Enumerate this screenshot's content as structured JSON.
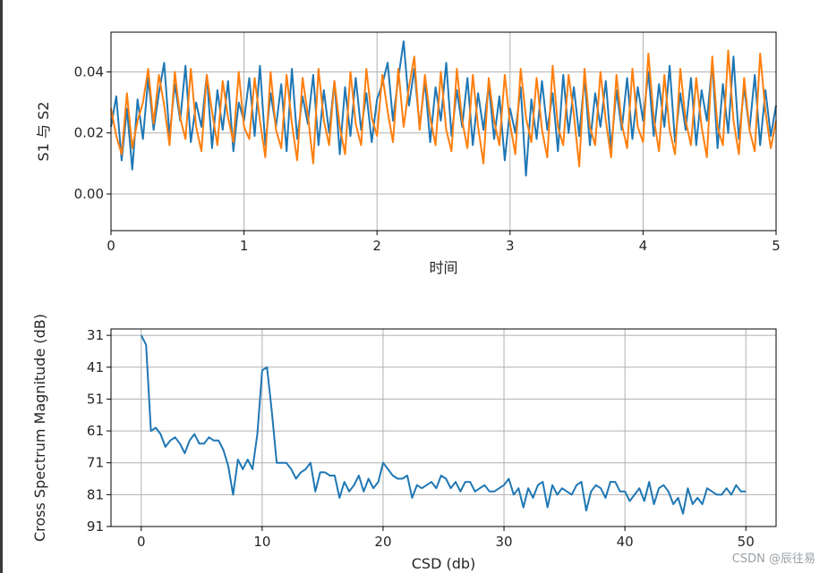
{
  "watermark": "CSDN @辰往易",
  "colors": {
    "series1": "#1f77b4",
    "series2": "#ff7f0e",
    "grid": "#b0b0b0",
    "axes": "#000000"
  },
  "chart_data": [
    {
      "type": "line",
      "title": "",
      "xlabel": "时间",
      "ylabel": "S1 与 S2",
      "xlim": [
        0,
        5
      ],
      "ylim": [
        -0.012,
        0.053
      ],
      "xticks": [
        0,
        1,
        2,
        3,
        4,
        5
      ],
      "xtick_labels": [
        "0",
        "1",
        "2",
        "3",
        "4",
        "5"
      ],
      "yticks": [
        0.0,
        0.02,
        0.04
      ],
      "ytick_labels": [
        "0.00",
        "0.02",
        "0.04"
      ],
      "grid": true,
      "legend": "none",
      "series": [
        {
          "color": "#1f77b4",
          "x": [
            0.0,
            0.04,
            0.08,
            0.12,
            0.16,
            0.2,
            0.24,
            0.28,
            0.32,
            0.36,
            0.4,
            0.44,
            0.48,
            0.52,
            0.56,
            0.6,
            0.64,
            0.68,
            0.72,
            0.76,
            0.8,
            0.84,
            0.88,
            0.92,
            0.96,
            1.0,
            1.04,
            1.08,
            1.12,
            1.16,
            1.2,
            1.24,
            1.28,
            1.32,
            1.36,
            1.4,
            1.44,
            1.48,
            1.52,
            1.56,
            1.6,
            1.64,
            1.68,
            1.72,
            1.76,
            1.8,
            1.84,
            1.88,
            1.92,
            1.96,
            2.0,
            2.04,
            2.08,
            2.12,
            2.16,
            2.2,
            2.24,
            2.28,
            2.32,
            2.36,
            2.4,
            2.44,
            2.48,
            2.52,
            2.56,
            2.6,
            2.64,
            2.68,
            2.72,
            2.76,
            2.8,
            2.84,
            2.88,
            2.92,
            2.96,
            3.0,
            3.04,
            3.08,
            3.12,
            3.16,
            3.2,
            3.24,
            3.28,
            3.32,
            3.36,
            3.4,
            3.44,
            3.48,
            3.52,
            3.56,
            3.6,
            3.64,
            3.68,
            3.72,
            3.76,
            3.8,
            3.84,
            3.88,
            3.92,
            3.96,
            4.0,
            4.04,
            4.08,
            4.12,
            4.16,
            4.2,
            4.24,
            4.28,
            4.32,
            4.36,
            4.4,
            4.44,
            4.48,
            4.52,
            4.56,
            4.6,
            4.64,
            4.68,
            4.72,
            4.76,
            4.8,
            4.84,
            4.88,
            4.92,
            4.96,
            5.0
          ],
          "y": [
            0.022,
            0.032,
            0.011,
            0.028,
            0.008,
            0.031,
            0.018,
            0.038,
            0.021,
            0.033,
            0.043,
            0.019,
            0.036,
            0.024,
            0.042,
            0.017,
            0.03,
            0.022,
            0.039,
            0.015,
            0.034,
            0.021,
            0.037,
            0.014,
            0.03,
            0.024,
            0.038,
            0.019,
            0.042,
            0.016,
            0.033,
            0.022,
            0.036,
            0.014,
            0.041,
            0.018,
            0.032,
            0.023,
            0.039,
            0.016,
            0.034,
            0.02,
            0.037,
            0.013,
            0.035,
            0.019,
            0.038,
            0.021,
            0.033,
            0.017,
            0.031,
            0.036,
            0.043,
            0.024,
            0.038,
            0.05,
            0.029,
            0.041,
            0.022,
            0.037,
            0.017,
            0.035,
            0.024,
            0.043,
            0.019,
            0.034,
            0.022,
            0.038,
            0.016,
            0.033,
            0.021,
            0.036,
            0.018,
            0.032,
            0.011,
            0.028,
            0.02,
            0.035,
            0.006,
            0.031,
            0.018,
            0.037,
            0.021,
            0.033,
            0.014,
            0.039,
            0.02,
            0.035,
            0.019,
            0.038,
            0.016,
            0.033,
            0.022,
            0.037,
            0.015,
            0.034,
            0.021,
            0.038,
            0.018,
            0.035,
            0.024,
            0.04,
            0.019,
            0.036,
            0.022,
            0.042,
            0.017,
            0.033,
            0.021,
            0.038,
            0.016,
            0.034,
            0.024,
            0.043,
            0.015,
            0.036,
            0.02,
            0.045,
            0.018,
            0.035,
            0.021,
            0.039,
            0.016,
            0.034,
            0.019,
            0.029
          ]
        },
        {
          "color": "#ff7f0e",
          "x": [
            0.0,
            0.04,
            0.08,
            0.12,
            0.16,
            0.2,
            0.24,
            0.28,
            0.32,
            0.36,
            0.4,
            0.44,
            0.48,
            0.52,
            0.56,
            0.6,
            0.64,
            0.68,
            0.72,
            0.76,
            0.8,
            0.84,
            0.88,
            0.92,
            0.96,
            1.0,
            1.04,
            1.08,
            1.12,
            1.16,
            1.2,
            1.24,
            1.28,
            1.32,
            1.36,
            1.4,
            1.44,
            1.48,
            1.52,
            1.56,
            1.6,
            1.64,
            1.68,
            1.72,
            1.76,
            1.8,
            1.84,
            1.88,
            1.92,
            1.96,
            2.0,
            2.04,
            2.08,
            2.12,
            2.16,
            2.2,
            2.24,
            2.28,
            2.32,
            2.36,
            2.4,
            2.44,
            2.48,
            2.52,
            2.56,
            2.6,
            2.64,
            2.68,
            2.72,
            2.76,
            2.8,
            2.84,
            2.88,
            2.92,
            2.96,
            3.0,
            3.04,
            3.08,
            3.12,
            3.16,
            3.2,
            3.24,
            3.28,
            3.32,
            3.36,
            3.4,
            3.44,
            3.48,
            3.52,
            3.56,
            3.6,
            3.64,
            3.68,
            3.72,
            3.76,
            3.8,
            3.84,
            3.88,
            3.92,
            3.96,
            4.0,
            4.04,
            4.08,
            4.12,
            4.16,
            4.2,
            4.24,
            4.28,
            4.32,
            4.36,
            4.4,
            4.44,
            4.48,
            4.52,
            4.56,
            4.6,
            4.64,
            4.68,
            4.72,
            4.76,
            4.8,
            4.84,
            4.88,
            4.92,
            4.96,
            5.0
          ],
          "y": [
            0.028,
            0.019,
            0.013,
            0.033,
            0.015,
            0.024,
            0.03,
            0.041,
            0.023,
            0.039,
            0.029,
            0.016,
            0.04,
            0.025,
            0.018,
            0.041,
            0.022,
            0.014,
            0.039,
            0.027,
            0.016,
            0.037,
            0.025,
            0.017,
            0.04,
            0.022,
            0.018,
            0.038,
            0.024,
            0.012,
            0.04,
            0.021,
            0.015,
            0.039,
            0.023,
            0.011,
            0.038,
            0.026,
            0.01,
            0.041,
            0.024,
            0.016,
            0.037,
            0.022,
            0.013,
            0.04,
            0.023,
            0.016,
            0.041,
            0.025,
            0.019,
            0.039,
            0.027,
            0.017,
            0.041,
            0.022,
            0.035,
            0.045,
            0.021,
            0.039,
            0.025,
            0.016,
            0.04,
            0.021,
            0.014,
            0.041,
            0.024,
            0.015,
            0.039,
            0.022,
            0.01,
            0.038,
            0.024,
            0.016,
            0.039,
            0.023,
            0.013,
            0.041,
            0.025,
            0.017,
            0.038,
            0.021,
            0.012,
            0.042,
            0.022,
            0.016,
            0.039,
            0.026,
            0.009,
            0.041,
            0.022,
            0.016,
            0.04,
            0.024,
            0.012,
            0.039,
            0.023,
            0.015,
            0.041,
            0.022,
            0.017,
            0.046,
            0.025,
            0.014,
            0.039,
            0.021,
            0.013,
            0.041,
            0.024,
            0.016,
            0.038,
            0.022,
            0.012,
            0.045,
            0.022,
            0.016,
            0.047,
            0.024,
            0.013,
            0.038,
            0.021,
            0.014,
            0.046,
            0.027,
            0.015,
            0.024
          ]
        }
      ]
    },
    {
      "type": "line",
      "title": "",
      "xlabel": "CSD (db)",
      "ylabel": "Cross Spectrum Magnitude (dB)",
      "xlim": [
        -2.5,
        52.5
      ],
      "ylim": [
        91,
        29
      ],
      "y_inverted": true,
      "xticks": [
        0,
        10,
        20,
        30,
        40,
        50
      ],
      "xtick_labels": [
        "0",
        "10",
        "20",
        "30",
        "40",
        "50"
      ],
      "yticks": [
        31,
        41,
        51,
        61,
        71,
        81,
        91
      ],
      "ytick_labels": [
        "31",
        "41",
        "51",
        "61",
        "71",
        "81",
        "91"
      ],
      "grid": true,
      "legend": "none",
      "series": [
        {
          "color": "#1f77b4",
          "x": [
            0.0,
            0.4,
            0.8,
            1.2,
            1.6,
            2.0,
            2.4,
            2.8,
            3.2,
            3.6,
            4.0,
            4.4,
            4.8,
            5.2,
            5.6,
            6.0,
            6.4,
            6.8,
            7.2,
            7.6,
            8.0,
            8.4,
            8.8,
            9.2,
            9.6,
            10.0,
            10.4,
            10.8,
            11.2,
            11.6,
            12.0,
            12.4,
            12.8,
            13.2,
            13.6,
            14.0,
            14.4,
            14.8,
            15.2,
            15.6,
            16.0,
            16.4,
            16.8,
            17.2,
            17.6,
            18.0,
            18.4,
            18.8,
            19.2,
            19.6,
            20.0,
            20.4,
            20.8,
            21.2,
            21.6,
            22.0,
            22.4,
            22.8,
            23.2,
            23.6,
            24.0,
            24.4,
            24.8,
            25.2,
            25.6,
            26.0,
            26.4,
            26.8,
            27.2,
            27.6,
            28.0,
            28.4,
            28.8,
            29.2,
            29.6,
            30.0,
            30.4,
            30.8,
            31.2,
            31.6,
            32.0,
            32.4,
            32.8,
            33.2,
            33.6,
            34.0,
            34.4,
            34.8,
            35.2,
            35.6,
            36.0,
            36.4,
            36.8,
            37.2,
            37.6,
            38.0,
            38.4,
            38.8,
            39.2,
            39.6,
            40.0,
            40.4,
            40.8,
            41.2,
            41.6,
            42.0,
            42.4,
            42.8,
            43.2,
            43.6,
            44.0,
            44.4,
            44.8,
            45.2,
            45.6,
            46.0,
            46.4,
            46.8,
            47.2,
            47.6,
            48.0,
            48.4,
            48.8,
            49.2,
            49.6,
            50.0
          ],
          "y": [
            31,
            34,
            61,
            60,
            62,
            66,
            64,
            63,
            65,
            68,
            64,
            62,
            65,
            65,
            63,
            64,
            64,
            67,
            72,
            81,
            70,
            73,
            70,
            73,
            62,
            42,
            41,
            55,
            71,
            71,
            71,
            73,
            76,
            74,
            73,
            71,
            80,
            74,
            74,
            75,
            75,
            82,
            77,
            80,
            78,
            75,
            80,
            76,
            79,
            77,
            71,
            73,
            75,
            76,
            76,
            75,
            82,
            78,
            79,
            78,
            77,
            79,
            75,
            76,
            79,
            77,
            80,
            77,
            77,
            80,
            79,
            78,
            80,
            80,
            79,
            78,
            76,
            81,
            79,
            85,
            79,
            82,
            78,
            77,
            85,
            78,
            81,
            79,
            80,
            81,
            78,
            77,
            86,
            80,
            78,
            79,
            82,
            77,
            77,
            80,
            80,
            83,
            81,
            79,
            83,
            77,
            84,
            79,
            78,
            80,
            84,
            82,
            87,
            79,
            84,
            82,
            84,
            79,
            80,
            81,
            81,
            79,
            81,
            78,
            80,
            80
          ]
        }
      ]
    }
  ]
}
